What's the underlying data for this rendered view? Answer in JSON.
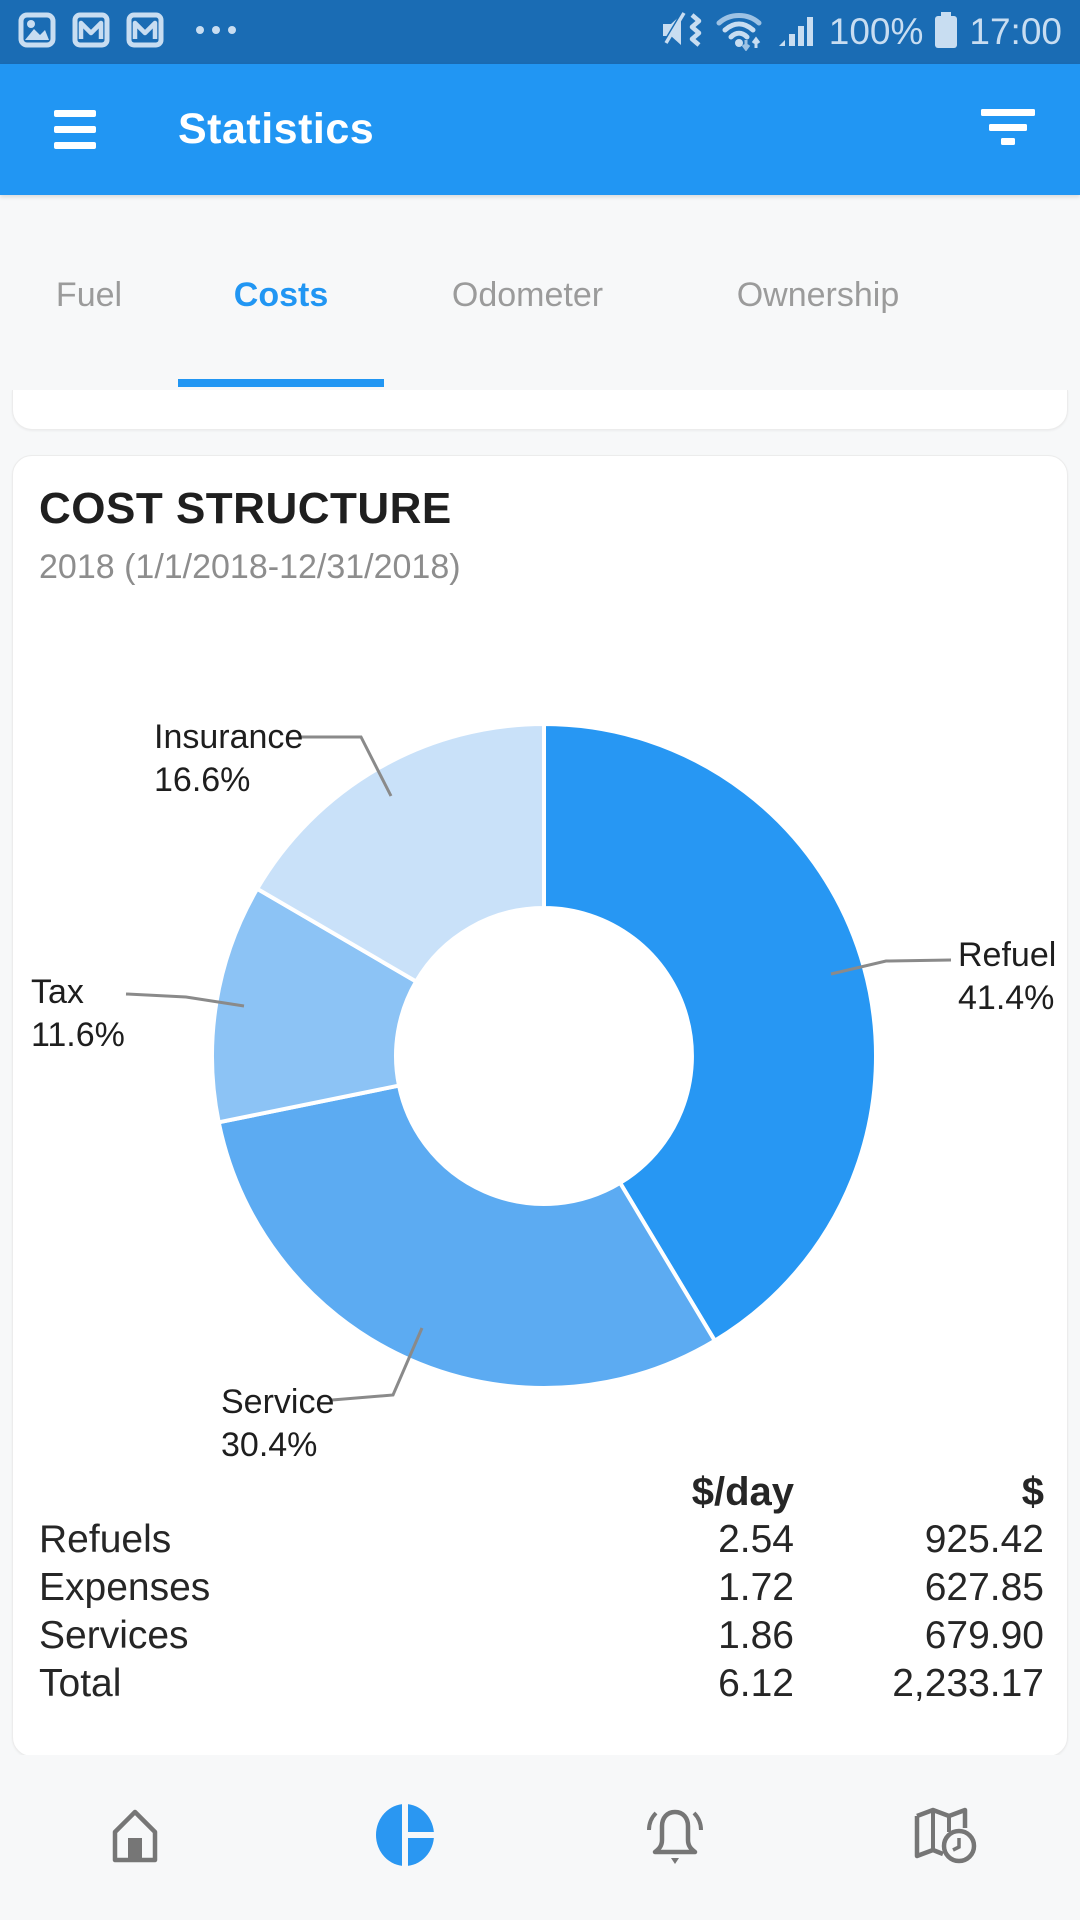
{
  "status_bar": {
    "time": "17:00",
    "battery_percent": "100%",
    "notification_icons": [
      "gallery-icon",
      "gmail-icon",
      "gmail-icon",
      "more-notifications-icon"
    ],
    "system_icons": [
      "mute-vibrate-icon",
      "wifi-icon",
      "signal-icon",
      "battery-icon"
    ]
  },
  "app_bar": {
    "title": "Statistics",
    "menu_icon": "hamburger-menu-icon",
    "filter_icon": "filter-icon"
  },
  "tabs": {
    "items": [
      {
        "label": "Fuel",
        "active": false
      },
      {
        "label": "Costs",
        "active": true
      },
      {
        "label": "Odometer",
        "active": false
      },
      {
        "label": "Ownership",
        "active": false
      }
    ]
  },
  "card": {
    "title": "COST STRUCTURE",
    "subtitle": "2018 (1/1/2018-12/31/2018)"
  },
  "chart_data": {
    "type": "pie",
    "donut": true,
    "title": "COST STRUCTURE",
    "subtitle": "2018 (1/1/2018-12/31/2018)",
    "categories": [
      "Refuel",
      "Service",
      "Tax",
      "Insurance"
    ],
    "values": [
      41.4,
      30.4,
      11.6,
      16.6
    ],
    "unit": "%",
    "colors": [
      "#2797f3",
      "#5cabf2",
      "#8cc3f5",
      "#c9e1f9"
    ],
    "start_angle": "top",
    "direction": "clockwise",
    "callouts": [
      {
        "label": "Refuel",
        "value": "41.4%"
      },
      {
        "label": "Service",
        "value": "30.4%"
      },
      {
        "label": "Tax",
        "value": "11.6%"
      },
      {
        "label": "Insurance",
        "value": "16.6%"
      }
    ]
  },
  "table": {
    "columns": [
      "$/day",
      "$"
    ],
    "rows": [
      {
        "label": "Refuels",
        "per_day": "2.54",
        "total": "925.42"
      },
      {
        "label": "Expenses",
        "per_day": "1.72",
        "total": "627.85"
      },
      {
        "label": "Services",
        "per_day": "1.86",
        "total": "679.90"
      },
      {
        "label": "Total",
        "per_day": "6.12",
        "total": "2,233.17"
      }
    ]
  },
  "bottom_nav": {
    "items": [
      {
        "icon": "home-icon",
        "active": false
      },
      {
        "icon": "pie-chart-icon",
        "active": true
      },
      {
        "icon": "bell-icon",
        "active": false
      },
      {
        "icon": "map-clock-icon",
        "active": false
      }
    ]
  },
  "colors": {
    "accent": "#2196f3",
    "status_bar_bg": "#1a6cb4",
    "app_bar_bg": "#2196f3",
    "inactive_tab": "#9b9b9b",
    "nav_icon_gray": "#767676"
  }
}
